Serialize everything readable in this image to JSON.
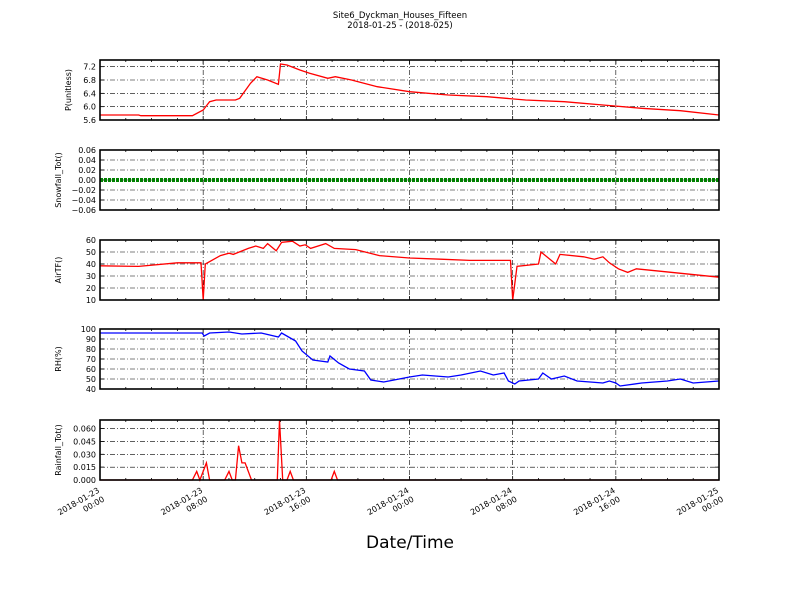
{
  "chart_data": {
    "type": "line",
    "title": "Site6_Dyckman_Houses_Fifteen",
    "subtitle": "2018-01-25 - (2018-025)",
    "xlabel": "Date/Time",
    "xlim": [
      "2018-01-23 00:00",
      "2018-01-25 00:00"
    ],
    "xticks": [
      {
        "t": "2018-01-23 00:00",
        "label": [
          "2018-01-23",
          "00:00"
        ]
      },
      {
        "t": "2018-01-23 08:00",
        "label": [
          "2018-01-23",
          "08:00"
        ]
      },
      {
        "t": "2018-01-23 16:00",
        "label": [
          "2018-01-23",
          "16:00"
        ]
      },
      {
        "t": "2018-01-24 00:00",
        "label": [
          "2018-01-24",
          "00:00"
        ]
      },
      {
        "t": "2018-01-24 08:00",
        "label": [
          "2018-01-24",
          "08:00"
        ]
      },
      {
        "t": "2018-01-24 16:00",
        "label": [
          "2018-01-24",
          "16:00"
        ]
      },
      {
        "t": "2018-01-25 00:00",
        "label": [
          "2018-01-25",
          "00:00"
        ]
      }
    ],
    "grid": true,
    "panels": [
      {
        "ylabel": "P(unitless)",
        "ylim": [
          5.6,
          7.4
        ],
        "yticks": [
          "5.6",
          "6.0",
          "6.4",
          "6.8",
          "7.2"
        ],
        "color": "#ff0000",
        "points": [
          [
            "2018-01-23 00:00",
            5.75
          ],
          [
            "2018-01-23 03:00",
            5.75
          ],
          [
            "2018-01-23 03:10",
            5.73
          ],
          [
            "2018-01-23 07:10",
            5.73
          ],
          [
            "2018-01-23 08:00",
            5.9
          ],
          [
            "2018-01-23 08:30",
            6.15
          ],
          [
            "2018-01-23 09:00",
            6.2
          ],
          [
            "2018-01-23 10:30",
            6.2
          ],
          [
            "2018-01-23 10:50",
            6.25
          ],
          [
            "2018-01-23 11:40",
            6.7
          ],
          [
            "2018-01-23 12:10",
            6.9
          ],
          [
            "2018-01-23 13:00",
            6.8
          ],
          [
            "2018-01-23 13:50",
            6.67
          ],
          [
            "2018-01-23 14:00",
            7.28
          ],
          [
            "2018-01-23 14:30",
            7.25
          ],
          [
            "2018-01-23 15:30",
            7.1
          ],
          [
            "2018-01-23 16:15",
            7.0
          ],
          [
            "2018-01-23 17:40",
            6.85
          ],
          [
            "2018-01-23 18:15",
            6.9
          ],
          [
            "2018-01-23 19:30",
            6.8
          ],
          [
            "2018-01-23 21:30",
            6.6
          ],
          [
            "2018-01-24 00:00",
            6.45
          ],
          [
            "2018-01-24 03:00",
            6.35
          ],
          [
            "2018-01-24 06:00",
            6.3
          ],
          [
            "2018-01-24 09:00",
            6.2
          ],
          [
            "2018-01-24 12:00",
            6.15
          ],
          [
            "2018-01-24 15:00",
            6.05
          ],
          [
            "2018-01-24 18:00",
            5.95
          ],
          [
            "2018-01-24 21:00",
            5.88
          ],
          [
            "2018-01-25 00:00",
            5.75
          ]
        ]
      },
      {
        "ylabel": "Snowfall_Tot()",
        "ylim": [
          -0.06,
          0.06
        ],
        "yticks": [
          "−0.06",
          "−0.04",
          "−0.02",
          "0.00",
          "0.02",
          "0.04",
          "0.06"
        ],
        "color": "#008000",
        "markers": true,
        "points": [
          [
            "2018-01-23 00:00",
            0
          ],
          [
            "2018-01-25 00:00",
            0
          ]
        ]
      },
      {
        "ylabel": "AirTF()",
        "ylim": [
          10,
          60
        ],
        "yticks": [
          "10",
          "20",
          "30",
          "40",
          "50",
          "60"
        ],
        "color": "#ff0000",
        "points": [
          [
            "2018-01-23 00:00",
            38.5
          ],
          [
            "2018-01-23 03:00",
            38
          ],
          [
            "2018-01-23 06:00",
            41
          ],
          [
            "2018-01-23 07:50",
            41
          ],
          [
            "2018-01-23 08:00",
            10
          ],
          [
            "2018-01-23 08:10",
            40
          ],
          [
            "2018-01-23 09:20",
            47
          ],
          [
            "2018-01-23 10:00",
            49
          ],
          [
            "2018-01-23 10:20",
            48
          ],
          [
            "2018-01-23 11:30",
            53
          ],
          [
            "2018-01-23 12:05",
            55
          ],
          [
            "2018-01-23 12:40",
            53
          ],
          [
            "2018-01-23 13:00",
            57
          ],
          [
            "2018-01-23 13:40",
            51
          ],
          [
            "2018-01-23 14:05",
            58
          ],
          [
            "2018-01-23 14:55",
            59
          ],
          [
            "2018-01-23 15:30",
            55
          ],
          [
            "2018-01-23 15:55",
            56
          ],
          [
            "2018-01-23 16:20",
            53
          ],
          [
            "2018-01-23 17:30",
            57
          ],
          [
            "2018-01-23 18:10",
            53
          ],
          [
            "2018-01-23 19:50",
            52
          ],
          [
            "2018-01-23 21:40",
            47
          ],
          [
            "2018-01-24 00:00",
            45
          ],
          [
            "2018-01-24 02:25",
            44
          ],
          [
            "2018-01-24 04:40",
            43
          ],
          [
            "2018-01-24 07:50",
            43
          ],
          [
            "2018-01-24 08:00",
            10
          ],
          [
            "2018-01-24 08:20",
            38
          ],
          [
            "2018-01-24 10:00",
            40
          ],
          [
            "2018-01-24 10:12",
            50
          ],
          [
            "2018-01-24 11:20",
            40
          ],
          [
            "2018-01-24 11:40",
            48
          ],
          [
            "2018-01-24 13:30",
            46
          ],
          [
            "2018-01-24 14:20",
            44
          ],
          [
            "2018-01-24 15:00",
            46
          ],
          [
            "2018-01-24 15:30",
            41
          ],
          [
            "2018-01-24 16:12",
            36
          ],
          [
            "2018-01-24 16:55",
            33
          ],
          [
            "2018-01-24 17:35",
            36
          ],
          [
            "2018-01-24 19:25",
            34
          ],
          [
            "2018-01-25 00:00",
            29
          ]
        ]
      },
      {
        "ylabel": "RH(%)",
        "ylim": [
          40,
          100
        ],
        "yticks": [
          "40",
          "50",
          "60",
          "70",
          "80",
          "90",
          "100"
        ],
        "color": "#0000ff",
        "points": [
          [
            "2018-01-23 00:00",
            96
          ],
          [
            "2018-01-23 07:55",
            96
          ],
          [
            "2018-01-23 08:05",
            93
          ],
          [
            "2018-01-23 08:30",
            96
          ],
          [
            "2018-01-23 10:00",
            97
          ],
          [
            "2018-01-23 11:00",
            95
          ],
          [
            "2018-01-23 12:30",
            96
          ],
          [
            "2018-01-23 13:50",
            92
          ],
          [
            "2018-01-23 14:05",
            96
          ],
          [
            "2018-01-23 15:10",
            88
          ],
          [
            "2018-01-23 15:40",
            78
          ],
          [
            "2018-01-23 16:30",
            69
          ],
          [
            "2018-01-23 17:40",
            67
          ],
          [
            "2018-01-23 17:50",
            73
          ],
          [
            "2018-01-23 18:30",
            66
          ],
          [
            "2018-01-23 19:20",
            60
          ],
          [
            "2018-01-23 20:30",
            58
          ],
          [
            "2018-01-23 21:00",
            49
          ],
          [
            "2018-01-23 22:00",
            47
          ],
          [
            "2018-01-24 00:00",
            52
          ],
          [
            "2018-01-24 01:00",
            54
          ],
          [
            "2018-01-24 03:00",
            52
          ],
          [
            "2018-01-24 04:00",
            54
          ],
          [
            "2018-01-24 05:30",
            58
          ],
          [
            "2018-01-24 06:30",
            54
          ],
          [
            "2018-01-24 07:20",
            56
          ],
          [
            "2018-01-24 07:40",
            48
          ],
          [
            "2018-01-24 08:10",
            45
          ],
          [
            "2018-01-24 08:30",
            48
          ],
          [
            "2018-01-24 10:00",
            50
          ],
          [
            "2018-01-24 10:20",
            56
          ],
          [
            "2018-01-24 11:00",
            50
          ],
          [
            "2018-01-24 12:00",
            53
          ],
          [
            "2018-01-24 13:00",
            48
          ],
          [
            "2018-01-24 15:00",
            46
          ],
          [
            "2018-01-24 15:30",
            48
          ],
          [
            "2018-01-24 16:00",
            46
          ],
          [
            "2018-01-24 16:20",
            43
          ],
          [
            "2018-01-24 18:00",
            46
          ],
          [
            "2018-01-24 20:00",
            48
          ],
          [
            "2018-01-24 21:00",
            50
          ],
          [
            "2018-01-24 22:00",
            46
          ],
          [
            "2018-01-25 00:00",
            48
          ]
        ]
      },
      {
        "ylabel": "Rainfall_Tot()",
        "ylim": [
          0,
          0.07
        ],
        "yticks": [
          "0.000",
          "0.015",
          "0.030",
          "0.045",
          "0.060"
        ],
        "color": "#ff0000",
        "points": [
          [
            "2018-01-23 00:00",
            0
          ],
          [
            "2018-01-23 07:10",
            0
          ],
          [
            "2018-01-23 07:30",
            0.01
          ],
          [
            "2018-01-23 07:45",
            0
          ],
          [
            "2018-01-23 08:15",
            0.02
          ],
          [
            "2018-01-23 08:30",
            0
          ],
          [
            "2018-01-23 09:40",
            0
          ],
          [
            "2018-01-23 10:00",
            0.01
          ],
          [
            "2018-01-23 10:15",
            0
          ],
          [
            "2018-01-23 10:30",
            0
          ],
          [
            "2018-01-23 10:45",
            0.04
          ],
          [
            "2018-01-23 11:00",
            0.02
          ],
          [
            "2018-01-23 11:15",
            0.02
          ],
          [
            "2018-01-23 11:45",
            0
          ],
          [
            "2018-01-23 13:45",
            0
          ],
          [
            "2018-01-23 13:55",
            0.07
          ],
          [
            "2018-01-23 14:10",
            0
          ],
          [
            "2018-01-23 14:30",
            0
          ],
          [
            "2018-01-23 14:45",
            0.01
          ],
          [
            "2018-01-23 15:00",
            0
          ],
          [
            "2018-01-23 17:55",
            0
          ],
          [
            "2018-01-23 18:10",
            0.01
          ],
          [
            "2018-01-23 18:25",
            0
          ],
          [
            "2018-01-25 00:00",
            0
          ]
        ]
      }
    ]
  }
}
